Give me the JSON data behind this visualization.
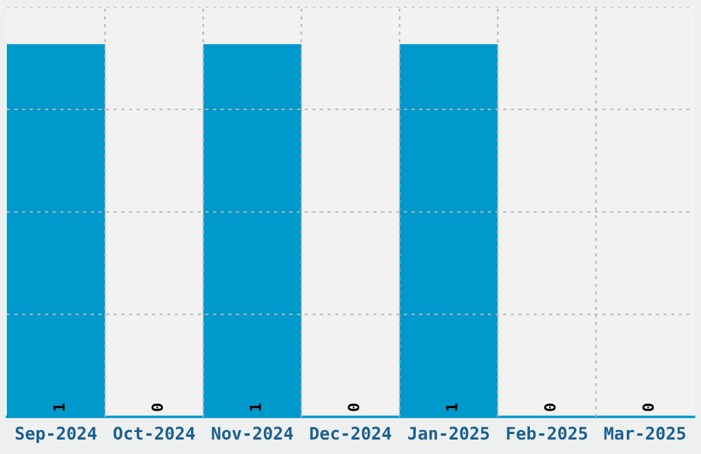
{
  "chart_data": {
    "type": "bar",
    "categories": [
      "Sep-2024",
      "Oct-2024",
      "Nov-2024",
      "Dec-2024",
      "Jan-2025",
      "Feb-2025",
      "Mar-2025"
    ],
    "values": [
      1,
      0,
      1,
      0,
      1,
      0,
      0
    ],
    "color": "#0099cc",
    "ylim": [
      0,
      1.1
    ],
    "yticks": [
      {
        "value": 0.275,
        "label": null
      },
      {
        "value": 0.55,
        "label": null
      },
      {
        "value": 0.825,
        "label": null
      },
      {
        "value": 1.1,
        "label": null
      }
    ],
    "tick_labels": "x",
    "data_labels": true,
    "grid": true
  }
}
